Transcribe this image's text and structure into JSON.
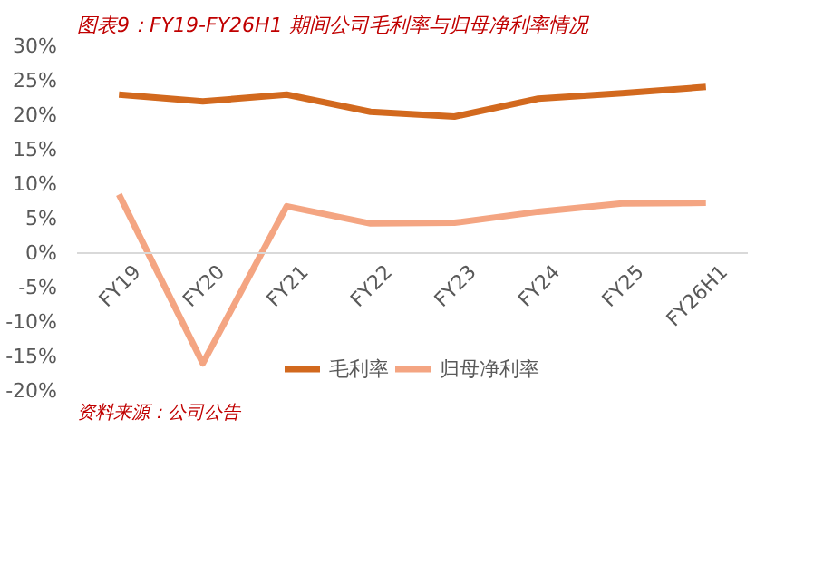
{
  "chart_data": {
    "type": "line",
    "title": "图表9：FY19-FY26H1 期间公司毛利率与归母净利率情况",
    "categories": [
      "FY19",
      "FY20",
      "FY21",
      "FY22",
      "FY23",
      "FY24",
      "FY25",
      "FY26H1"
    ],
    "series": [
      {
        "name": "毛利率",
        "color": "#d2691e",
        "values": [
          23,
          22,
          23,
          20.5,
          19.8,
          22.4,
          23.2,
          24.1
        ]
      },
      {
        "name": "归母净利率",
        "color": "#f4a582",
        "values": [
          8.5,
          -16,
          6.8,
          4.3,
          4.4,
          6,
          7.2,
          7.3
        ]
      }
    ],
    "ylim": [
      -20,
      30
    ],
    "yticks": [
      {
        "value": -20,
        "label": "-20%"
      },
      {
        "value": -15,
        "label": "-15%"
      },
      {
        "value": -10,
        "label": "-10%"
      },
      {
        "value": -5,
        "label": "-5%"
      },
      {
        "value": 0,
        "label": "0%"
      },
      {
        "value": 5,
        "label": "5%"
      },
      {
        "value": 10,
        "label": "10%"
      },
      {
        "value": 15,
        "label": "15%"
      },
      {
        "value": 20,
        "label": "20%"
      },
      {
        "value": 25,
        "label": "25%"
      },
      {
        "value": 30,
        "label": "30%"
      }
    ],
    "grid": false,
    "legend": "bottom",
    "marker": "none",
    "line_style": "solid",
    "annotations": [
      "资料来源：公司公告"
    ]
  }
}
